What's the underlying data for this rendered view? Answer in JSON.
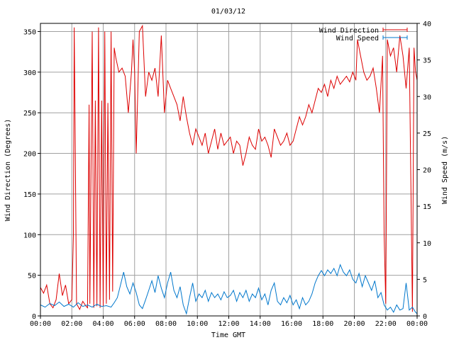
{
  "chart_data": {
    "type": "line",
    "title": "01/03/12",
    "xlabel": "Time GMT",
    "ylabel_left": "Wind Direction (Degrees)",
    "ylabel_right": "Wind Speed (m/s)",
    "x_ticks": [
      "00:00",
      "02:00",
      "04:00",
      "06:00",
      "08:00",
      "10:00",
      "12:00",
      "14:00",
      "16:00",
      "18:00",
      "20:00",
      "22:00",
      "00:00"
    ],
    "x_range_hours": [
      0,
      24
    ],
    "ylim_left": [
      0,
      360
    ],
    "yticks_left": [
      0,
      50,
      100,
      150,
      200,
      250,
      300,
      350
    ],
    "ylim_right": [
      0,
      40
    ],
    "yticks_right": [
      0,
      5,
      10,
      15,
      20,
      25,
      30,
      35,
      40
    ],
    "grid": true,
    "legend_position": "top-right",
    "series": [
      {
        "name": "Wind Direction",
        "axis": "left",
        "color": "#dd0000",
        "points": [
          [
            0.0,
            35
          ],
          [
            0.2,
            28
          ],
          [
            0.4,
            38
          ],
          [
            0.6,
            15
          ],
          [
            0.8,
            10
          ],
          [
            1.0,
            20
          ],
          [
            1.2,
            52
          ],
          [
            1.4,
            25
          ],
          [
            1.6,
            38
          ],
          [
            1.8,
            15
          ],
          [
            2.0,
            20
          ],
          [
            2.1,
            100
          ],
          [
            2.15,
            355
          ],
          [
            2.2,
            250
          ],
          [
            2.3,
            15
          ],
          [
            2.5,
            8
          ],
          [
            2.7,
            18
          ],
          [
            2.9,
            12
          ],
          [
            3.0,
            10
          ],
          [
            3.1,
            260
          ],
          [
            3.15,
            15
          ],
          [
            3.3,
            350
          ],
          [
            3.4,
            10
          ],
          [
            3.5,
            265
          ],
          [
            3.6,
            12
          ],
          [
            3.7,
            355
          ],
          [
            3.8,
            10
          ],
          [
            3.9,
            265
          ],
          [
            4.0,
            12
          ],
          [
            4.1,
            350
          ],
          [
            4.2,
            15
          ],
          [
            4.3,
            262
          ],
          [
            4.4,
            20
          ],
          [
            4.5,
            350
          ],
          [
            4.6,
            30
          ],
          [
            4.7,
            330
          ],
          [
            4.8,
            318
          ],
          [
            5.0,
            300
          ],
          [
            5.2,
            305
          ],
          [
            5.4,
            295
          ],
          [
            5.6,
            250
          ],
          [
            5.8,
            300
          ],
          [
            5.9,
            340
          ],
          [
            6.0,
            300
          ],
          [
            6.1,
            200
          ],
          [
            6.3,
            350
          ],
          [
            6.5,
            357
          ],
          [
            6.7,
            270
          ],
          [
            6.9,
            300
          ],
          [
            7.1,
            290
          ],
          [
            7.3,
            305
          ],
          [
            7.5,
            270
          ],
          [
            7.7,
            345
          ],
          [
            7.9,
            250
          ],
          [
            8.1,
            290
          ],
          [
            8.3,
            280
          ],
          [
            8.5,
            270
          ],
          [
            8.7,
            260
          ],
          [
            8.9,
            240
          ],
          [
            9.1,
            270
          ],
          [
            9.3,
            245
          ],
          [
            9.5,
            225
          ],
          [
            9.7,
            210
          ],
          [
            9.9,
            230
          ],
          [
            10.1,
            220
          ],
          [
            10.3,
            210
          ],
          [
            10.5,
            225
          ],
          [
            10.7,
            200
          ],
          [
            10.9,
            215
          ],
          [
            11.1,
            230
          ],
          [
            11.3,
            205
          ],
          [
            11.5,
            225
          ],
          [
            11.7,
            210
          ],
          [
            11.9,
            215
          ],
          [
            12.1,
            220
          ],
          [
            12.3,
            200
          ],
          [
            12.5,
            215
          ],
          [
            12.7,
            210
          ],
          [
            12.9,
            185
          ],
          [
            13.1,
            200
          ],
          [
            13.3,
            220
          ],
          [
            13.5,
            210
          ],
          [
            13.7,
            205
          ],
          [
            13.9,
            230
          ],
          [
            14.1,
            215
          ],
          [
            14.3,
            220
          ],
          [
            14.5,
            210
          ],
          [
            14.7,
            195
          ],
          [
            14.9,
            230
          ],
          [
            15.1,
            220
          ],
          [
            15.3,
            210
          ],
          [
            15.5,
            215
          ],
          [
            15.7,
            225
          ],
          [
            15.9,
            210
          ],
          [
            16.1,
            215
          ],
          [
            16.3,
            230
          ],
          [
            16.5,
            245
          ],
          [
            16.7,
            235
          ],
          [
            16.9,
            245
          ],
          [
            17.1,
            260
          ],
          [
            17.3,
            250
          ],
          [
            17.5,
            265
          ],
          [
            17.7,
            280
          ],
          [
            17.9,
            275
          ],
          [
            18.1,
            285
          ],
          [
            18.3,
            270
          ],
          [
            18.5,
            290
          ],
          [
            18.7,
            280
          ],
          [
            18.9,
            295
          ],
          [
            19.1,
            285
          ],
          [
            19.3,
            290
          ],
          [
            19.5,
            295
          ],
          [
            19.7,
            288
          ],
          [
            19.9,
            300
          ],
          [
            20.1,
            290
          ],
          [
            20.2,
            340
          ],
          [
            20.4,
            320
          ],
          [
            20.6,
            300
          ],
          [
            20.8,
            290
          ],
          [
            21.0,
            295
          ],
          [
            21.2,
            305
          ],
          [
            21.4,
            280
          ],
          [
            21.6,
            250
          ],
          [
            21.8,
            320
          ],
          [
            21.9,
            100
          ],
          [
            22.0,
            15
          ],
          [
            22.1,
            340
          ],
          [
            22.3,
            320
          ],
          [
            22.5,
            330
          ],
          [
            22.7,
            300
          ],
          [
            22.9,
            345
          ],
          [
            23.1,
            320
          ],
          [
            23.3,
            280
          ],
          [
            23.5,
            330
          ],
          [
            23.7,
            5
          ],
          [
            23.8,
            330
          ],
          [
            23.9,
            300
          ],
          [
            24.0,
            290
          ]
        ]
      },
      {
        "name": "Wind Speed",
        "axis": "right",
        "color": "#0077cc",
        "points": [
          [
            0.0,
            1.5
          ],
          [
            0.3,
            1.2
          ],
          [
            0.6,
            1.7
          ],
          [
            0.9,
            1.4
          ],
          [
            1.2,
            1.9
          ],
          [
            1.5,
            1.3
          ],
          [
            1.8,
            1.6
          ],
          [
            2.1,
            1.2
          ],
          [
            2.4,
            1.8
          ],
          [
            2.7,
            1.3
          ],
          [
            3.0,
            1.5
          ],
          [
            3.3,
            1.2
          ],
          [
            3.6,
            1.6
          ],
          [
            3.9,
            1.3
          ],
          [
            4.2,
            1.4
          ],
          [
            4.5,
            1.2
          ],
          [
            4.7,
            1.8
          ],
          [
            4.9,
            2.5
          ],
          [
            5.1,
            4.2
          ],
          [
            5.3,
            6.0
          ],
          [
            5.5,
            4.0
          ],
          [
            5.7,
            3.0
          ],
          [
            5.9,
            4.5
          ],
          [
            6.1,
            3.2
          ],
          [
            6.3,
            1.5
          ],
          [
            6.5,
            1.0
          ],
          [
            6.7,
            2.2
          ],
          [
            6.9,
            3.5
          ],
          [
            7.1,
            4.8
          ],
          [
            7.3,
            3.2
          ],
          [
            7.5,
            5.5
          ],
          [
            7.7,
            3.8
          ],
          [
            7.9,
            2.5
          ],
          [
            8.1,
            4.5
          ],
          [
            8.3,
            6.0
          ],
          [
            8.5,
            3.5
          ],
          [
            8.7,
            2.5
          ],
          [
            8.9,
            4.0
          ],
          [
            9.1,
            1.5
          ],
          [
            9.3,
            0.3
          ],
          [
            9.5,
            2.5
          ],
          [
            9.7,
            4.5
          ],
          [
            9.9,
            2.0
          ],
          [
            10.1,
            3.0
          ],
          [
            10.3,
            2.5
          ],
          [
            10.5,
            3.5
          ],
          [
            10.7,
            2.0
          ],
          [
            10.9,
            3.2
          ],
          [
            11.1,
            2.5
          ],
          [
            11.3,
            3.0
          ],
          [
            11.5,
            2.2
          ],
          [
            11.7,
            3.3
          ],
          [
            11.9,
            2.5
          ],
          [
            12.1,
            2.8
          ],
          [
            12.3,
            3.5
          ],
          [
            12.5,
            2.0
          ],
          [
            12.7,
            3.2
          ],
          [
            12.9,
            2.5
          ],
          [
            13.1,
            3.5
          ],
          [
            13.3,
            2.0
          ],
          [
            13.5,
            3.0
          ],
          [
            13.7,
            2.5
          ],
          [
            13.9,
            3.8
          ],
          [
            14.1,
            2.2
          ],
          [
            14.3,
            3.0
          ],
          [
            14.5,
            1.5
          ],
          [
            14.7,
            3.5
          ],
          [
            14.9,
            4.5
          ],
          [
            15.1,
            2.0
          ],
          [
            15.3,
            1.5
          ],
          [
            15.5,
            2.5
          ],
          [
            15.7,
            1.8
          ],
          [
            15.9,
            2.8
          ],
          [
            16.1,
            1.5
          ],
          [
            16.3,
            2.2
          ],
          [
            16.5,
            1.0
          ],
          [
            16.7,
            2.5
          ],
          [
            16.9,
            1.5
          ],
          [
            17.1,
            2.0
          ],
          [
            17.3,
            3.0
          ],
          [
            17.5,
            4.5
          ],
          [
            17.7,
            5.5
          ],
          [
            17.9,
            6.2
          ],
          [
            18.1,
            5.5
          ],
          [
            18.3,
            6.3
          ],
          [
            18.5,
            5.8
          ],
          [
            18.7,
            6.5
          ],
          [
            18.9,
            5.5
          ],
          [
            19.1,
            7.0
          ],
          [
            19.3,
            6.0
          ],
          [
            19.5,
            5.5
          ],
          [
            19.7,
            6.3
          ],
          [
            19.9,
            5.0
          ],
          [
            20.1,
            4.5
          ],
          [
            20.3,
            5.8
          ],
          [
            20.5,
            4.0
          ],
          [
            20.7,
            5.5
          ],
          [
            20.9,
            4.5
          ],
          [
            21.1,
            3.5
          ],
          [
            21.3,
            4.8
          ],
          [
            21.5,
            2.5
          ],
          [
            21.7,
            3.2
          ],
          [
            21.9,
            1.5
          ],
          [
            22.1,
            0.8
          ],
          [
            22.3,
            1.2
          ],
          [
            22.5,
            0.5
          ],
          [
            22.7,
            1.5
          ],
          [
            22.9,
            0.8
          ],
          [
            23.1,
            1.0
          ],
          [
            23.3,
            4.5
          ],
          [
            23.5,
            0.8
          ],
          [
            23.7,
            1.2
          ],
          [
            23.9,
            0.5
          ],
          [
            24.0,
            0.3
          ]
        ]
      }
    ]
  }
}
